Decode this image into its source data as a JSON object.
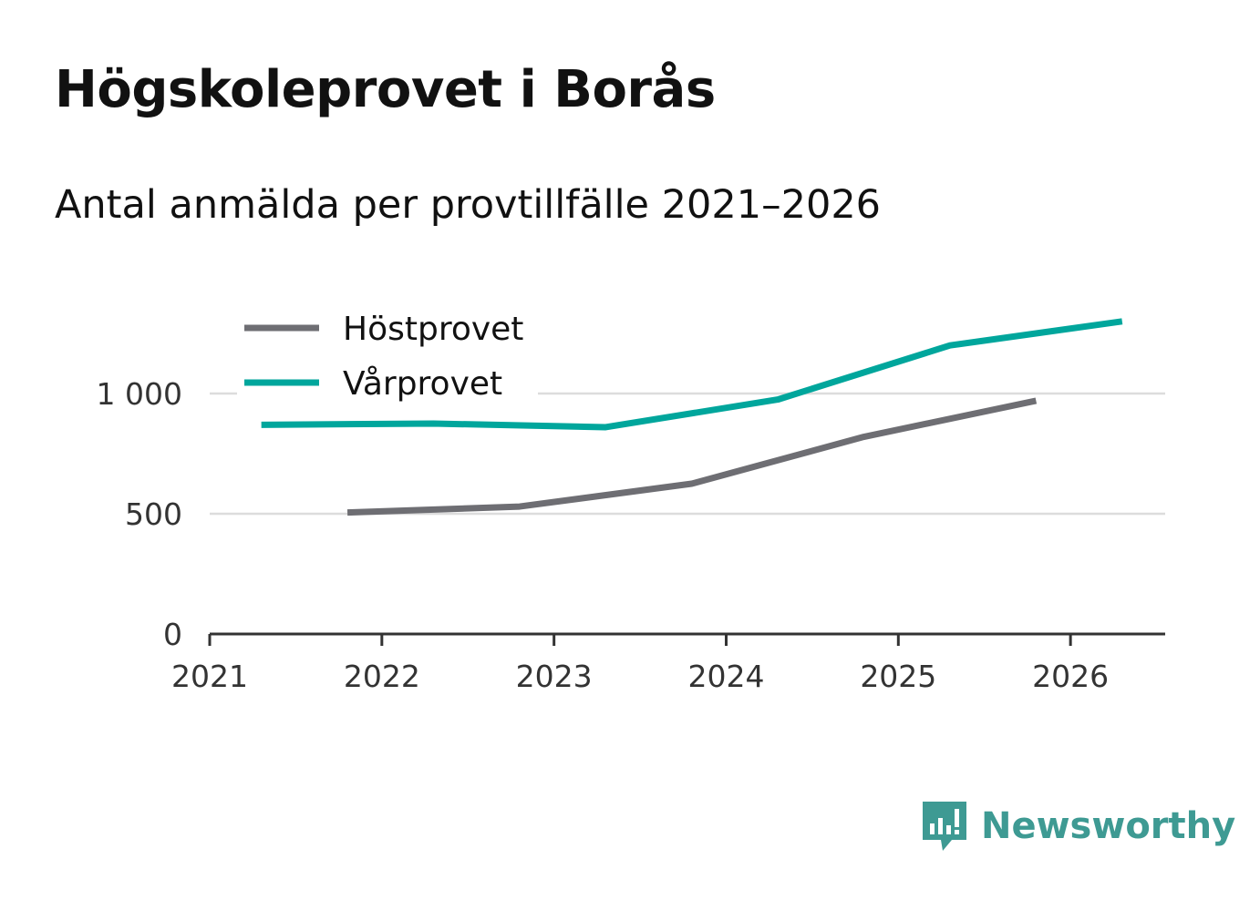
{
  "title": "Högskoleprovet i Borås",
  "subtitle": "Antal anmälda per provtillfälle 2021–2026",
  "brand": {
    "name": "Newsworthy",
    "icon": "newsworthy-logo-icon",
    "color": "#3e9a93"
  },
  "chart_data": {
    "type": "line",
    "title": "Högskoleprovet i Borås",
    "subtitle": "Antal anmälda per provtillfälle 2021–2026",
    "xlabel": "",
    "ylabel": "",
    "xlim": [
      2021,
      2026.55
    ],
    "ylim": [
      0,
      1000
    ],
    "x_ticks": [
      2021,
      2022,
      2023,
      2024,
      2025,
      2026
    ],
    "y_ticks": [
      {
        "value": 0,
        "label": "0"
      },
      {
        "value": 500,
        "label": "500"
      },
      {
        "value": 1000,
        "label": "1 000"
      }
    ],
    "grid": true,
    "legend_position": "top-left",
    "series": [
      {
        "name": "Höstprovet",
        "color": "#6e6e73",
        "x": [
          2021.8,
          2022.8,
          2023.8,
          2024.8,
          2025.8
        ],
        "values": [
          505,
          530,
          625,
          820,
          970
        ]
      },
      {
        "name": "Vårprovet",
        "color": "#00a69c",
        "x": [
          2021.3,
          2022.3,
          2023.3,
          2024.3,
          2025.3,
          2026.3
        ],
        "values": [
          870,
          875,
          860,
          975,
          1200,
          1300
        ]
      }
    ]
  }
}
